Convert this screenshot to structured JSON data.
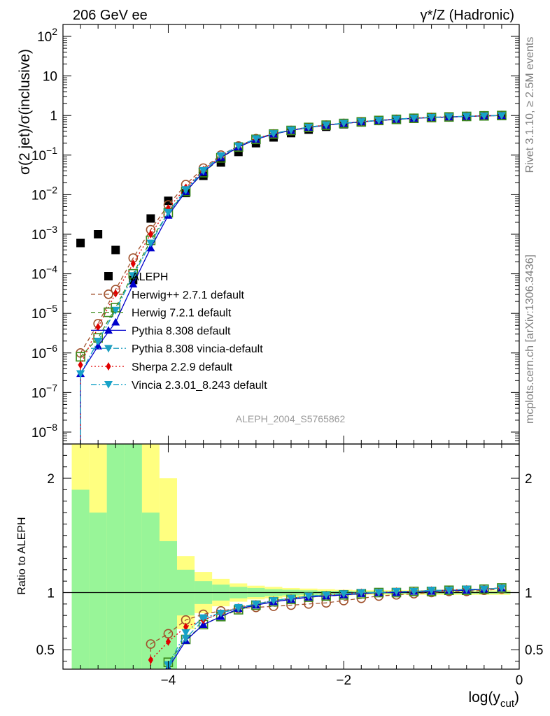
{
  "header": {
    "left": "206 GeV ee",
    "right": "γ*/Z (Hadronic)"
  },
  "side_labels": {
    "rivet": "Rivet 3.1.10, ≥ 2.5M events",
    "mcplots": "mcplots.cern.ch [arXiv:1306.3436]"
  },
  "watermark": "ALEPH_2004_S5765862",
  "chart_data": [
    {
      "type": "scatter",
      "panel": "main",
      "ylabel": "σ(2 jet)/σ(inclusive)",
      "yscale": "log",
      "ylim": [
        5e-09,
        200
      ],
      "xlim": [
        -5.2,
        0
      ],
      "grid": false,
      "legend_position": "center-left",
      "y_tick_labels": [
        "10^-8",
        "10^-7",
        "10^-6",
        "10^-5",
        "10^-4",
        "10^-3",
        "10^-2",
        "10^-1",
        "1",
        "10",
        "10^2"
      ],
      "x": [
        -5.0,
        -4.8,
        -4.6,
        -4.4,
        -4.2,
        -4.0,
        -3.8,
        -3.6,
        -3.4,
        -3.2,
        -3.0,
        -2.8,
        -2.6,
        -2.4,
        -2.2,
        -2.0,
        -1.8,
        -1.6,
        -1.4,
        -1.2,
        -1.0,
        -0.8,
        -0.6,
        -0.4,
        -0.2
      ],
      "series": [
        {
          "name": "ALEPH",
          "color": "#000000",
          "marker": "square",
          "line": "none",
          "values": [
            0.0006,
            0.001,
            0.0004,
            7e-05,
            0.0025,
            0.007,
            0.011,
            0.03,
            0.065,
            0.12,
            0.2,
            0.28,
            0.36,
            0.44,
            0.52,
            0.6,
            0.67,
            0.73,
            0.79,
            0.84,
            0.88,
            0.92,
            0.95,
            0.97,
            0.99
          ]
        },
        {
          "name": "Herwig++ 2.7.1 default",
          "color": "#a0522d",
          "marker": "circle-open",
          "line": "dashed",
          "values": [
            1e-06,
            5.5e-06,
            4e-05,
            0.00025,
            0.0013,
            0.0055,
            0.018,
            0.047,
            0.1,
            0.17,
            0.26,
            0.34,
            0.42,
            0.5,
            0.57,
            0.63,
            0.69,
            0.75,
            0.8,
            0.85,
            0.89,
            0.92,
            0.95,
            0.98,
            1.0
          ]
        },
        {
          "name": "Herwig 7.2.1 default",
          "color": "#3a8a1a",
          "marker": "square-open",
          "line": "dashed",
          "values": [
            8e-07,
            2.4e-06,
            1.4e-05,
            0.0001,
            0.0007,
            0.0035,
            0.012,
            0.036,
            0.085,
            0.16,
            0.25,
            0.34,
            0.42,
            0.5,
            0.57,
            0.63,
            0.69,
            0.75,
            0.8,
            0.85,
            0.89,
            0.92,
            0.95,
            0.98,
            1.0
          ]
        },
        {
          "name": "Pythia 8.308 default",
          "color": "#0000cc",
          "marker": "triangle-up",
          "line": "solid",
          "values": [
            3e-07,
            1.5e-06,
            6e-06,
            5.5e-05,
            0.00045,
            0.003,
            0.012,
            0.037,
            0.088,
            0.16,
            0.25,
            0.34,
            0.42,
            0.5,
            0.57,
            0.63,
            0.69,
            0.75,
            0.8,
            0.85,
            0.89,
            0.92,
            0.95,
            0.98,
            1.0
          ]
        },
        {
          "name": "Pythia 8.308 vincia-default",
          "color": "#1f9fc0",
          "marker": "triangle-down",
          "line": "dashdot",
          "values": [
            3e-07,
            2e-06,
            1.2e-05,
            9e-05,
            0.0006,
            0.0035,
            0.013,
            0.04,
            0.095,
            0.17,
            0.26,
            0.35,
            0.43,
            0.51,
            0.58,
            0.64,
            0.7,
            0.76,
            0.81,
            0.86,
            0.9,
            0.93,
            0.96,
            0.98,
            1.0
          ]
        },
        {
          "name": "Sherpa 2.2.9 default",
          "color": "#e00000",
          "marker": "diamond",
          "line": "dotted",
          "values": [
            5e-07,
            4.5e-06,
            3.2e-05,
            0.00018,
            0.001,
            0.0045,
            0.015,
            0.042,
            0.095,
            0.17,
            0.26,
            0.35,
            0.43,
            0.51,
            0.58,
            0.64,
            0.7,
            0.76,
            0.81,
            0.86,
            0.9,
            0.93,
            0.96,
            0.98,
            1.0
          ]
        },
        {
          "name": "Vincia 2.3.01_8.243 default",
          "color": "#17a2c8",
          "marker": "triangle-down",
          "line": "dashdot",
          "values": [
            3e-07,
            2e-06,
            1.2e-05,
            9e-05,
            0.0006,
            0.0036,
            0.0135,
            0.041,
            0.097,
            0.17,
            0.26,
            0.35,
            0.43,
            0.51,
            0.58,
            0.64,
            0.7,
            0.76,
            0.81,
            0.86,
            0.9,
            0.93,
            0.96,
            0.98,
            1.0
          ]
        }
      ]
    },
    {
      "type": "line",
      "panel": "ratio",
      "ylabel": "Ratio to ALEPH",
      "xlabel": "log(y_cut)",
      "ylim": [
        0.33,
        2.3
      ],
      "xlim": [
        -5.2,
        0
      ],
      "x_tick_labels": [
        "−4",
        "−2",
        "0"
      ],
      "y_tick_labels": [
        "0.5",
        "1",
        "2"
      ],
      "reference_line": 1,
      "x": [
        -5.0,
        -4.8,
        -4.6,
        -4.4,
        -4.2,
        -4.0,
        -3.8,
        -3.6,
        -3.4,
        -3.2,
        -3.0,
        -2.8,
        -2.6,
        -2.4,
        -2.2,
        -2.0,
        -1.8,
        -1.6,
        -1.4,
        -1.2,
        -1.0,
        -0.8,
        -0.6,
        -0.4,
        -0.2
      ],
      "band_outer": {
        "color": "#ffff80",
        "upper": [
          2.5,
          2.5,
          2.5,
          2.5,
          2.5,
          2.0,
          1.32,
          1.18,
          1.12,
          1.08,
          1.06,
          1.05,
          1.04,
          1.035,
          1.03,
          1.025,
          1.02,
          1.02,
          1.02,
          1.02,
          1.02,
          1.02,
          1.02,
          1.02,
          1.02
        ],
        "lower": [
          0.3,
          0.3,
          0.3,
          0.3,
          0.3,
          0.3,
          0.68,
          0.82,
          0.88,
          0.92,
          0.94,
          0.95,
          0.96,
          0.965,
          0.97,
          0.975,
          0.98,
          0.98,
          0.98,
          0.98,
          0.98,
          0.98,
          0.98,
          0.98,
          0.98
        ]
      },
      "band_inner": {
        "color": "#98f598",
        "upper": [
          1.9,
          1.7,
          2.5,
          2.5,
          1.7,
          1.45,
          1.2,
          1.1,
          1.07,
          1.05,
          1.04,
          1.03,
          1.025,
          1.02,
          1.015,
          1.015,
          1.01,
          1.01,
          1.01,
          1.01,
          1.01,
          1.01,
          1.01,
          1.01,
          1.01
        ],
        "lower": [
          0.3,
          0.3,
          0.3,
          0.3,
          0.3,
          0.3,
          0.8,
          0.9,
          0.93,
          0.95,
          0.96,
          0.97,
          0.975,
          0.98,
          0.985,
          0.985,
          0.99,
          0.99,
          0.99,
          0.99,
          0.99,
          0.99,
          0.99,
          0.99,
          0.99
        ]
      },
      "series": [
        {
          "name": "Herwig++ 2.7.1 default",
          "color": "#a0522d",
          "marker": "circle-open",
          "line": "dashed",
          "values": [
            null,
            null,
            null,
            null,
            0.55,
            0.64,
            0.76,
            0.81,
            0.84,
            0.86,
            0.87,
            0.88,
            0.89,
            0.9,
            0.91,
            0.93,
            0.95,
            0.97,
            0.98,
            0.99,
            1.0,
            1.01,
            1.01,
            1.02,
            1.03
          ]
        },
        {
          "name": "Herwig 7.2.1 default",
          "color": "#3a8a1a",
          "marker": "square-open",
          "line": "dashed",
          "values": [
            null,
            null,
            null,
            null,
            null,
            0.39,
            0.59,
            0.72,
            0.79,
            0.85,
            0.89,
            0.92,
            0.94,
            0.96,
            0.97,
            0.98,
            0.99,
            1.0,
            1.0,
            1.01,
            1.01,
            1.02,
            1.02,
            1.03,
            1.04
          ]
        },
        {
          "name": "Pythia 8.308 default",
          "color": "#0000cc",
          "marker": "triangle-up",
          "line": "solid",
          "values": [
            null,
            null,
            null,
            null,
            null,
            0.34,
            0.58,
            0.72,
            0.79,
            0.86,
            0.89,
            0.92,
            0.94,
            0.96,
            0.97,
            0.98,
            0.99,
            1.0,
            1.0,
            1.01,
            1.01,
            1.02,
            1.02,
            1.03,
            1.04
          ]
        },
        {
          "name": "Pythia 8.308 vincia-default",
          "color": "#1f9fc0",
          "marker": "triangle-down",
          "line": "dashdot",
          "values": [
            null,
            null,
            null,
            null,
            null,
            0.36,
            0.6,
            0.76,
            0.82,
            0.86,
            0.9,
            0.93,
            0.95,
            0.97,
            0.98,
            0.99,
            1.0,
            1.0,
            1.01,
            1.01,
            1.02,
            1.02,
            1.03,
            1.03,
            1.04
          ]
        },
        {
          "name": "Sherpa 2.2.9 default",
          "color": "#e00000",
          "marker": "diamond",
          "line": "dotted",
          "values": [
            null,
            null,
            null,
            null,
            0.41,
            0.57,
            0.7,
            0.76,
            0.82,
            0.87,
            0.9,
            0.93,
            0.95,
            0.97,
            0.98,
            0.99,
            1.0,
            1.0,
            1.01,
            1.01,
            1.02,
            1.02,
            1.03,
            1.03,
            1.04
          ]
        },
        {
          "name": "Vincia 2.3.01_8.243 default",
          "color": "#17a2c8",
          "marker": "triangle-down",
          "line": "dashdot",
          "values": [
            null,
            null,
            null,
            null,
            null,
            0.37,
            0.65,
            0.78,
            0.82,
            0.87,
            0.9,
            0.93,
            0.95,
            0.97,
            0.98,
            0.99,
            1.0,
            1.0,
            1.01,
            1.01,
            1.02,
            1.02,
            1.03,
            1.03,
            1.04
          ]
        }
      ]
    }
  ]
}
